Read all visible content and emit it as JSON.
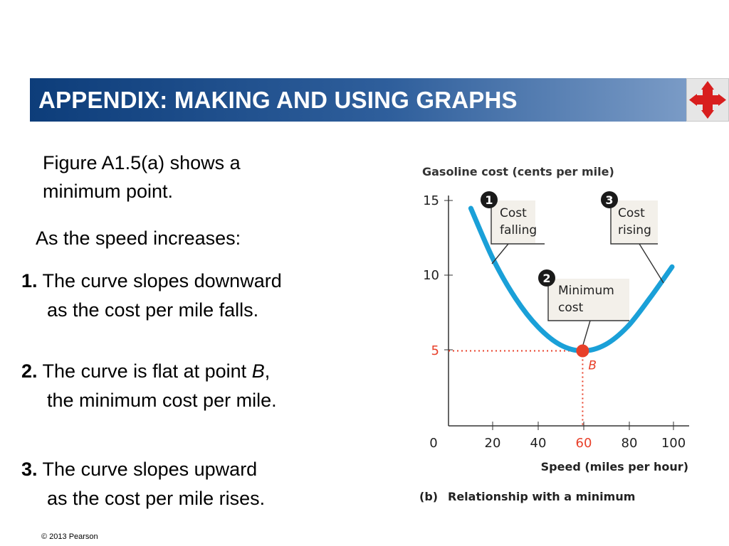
{
  "header": {
    "title": "APPENDIX: MAKING AND USING GRAPHS",
    "nav_icon": "four-way-arrows-icon",
    "accent": "#1f4f8f"
  },
  "body": {
    "intro_line1": "Figure A1.5(a) shows a",
    "intro_line2": "minimum point.",
    "lead": "As the speed increases:",
    "points": [
      {
        "num": "1.",
        "line1": "The curve slopes downward",
        "line2": "as the cost per mile falls."
      },
      {
        "num": "2.",
        "line1_a": "The curve is flat at point ",
        "line1_b": "B",
        "line1_c": ",",
        "line2": "the minimum cost per mile."
      },
      {
        "num": "3.",
        "line1": "The curve slopes upward",
        "line2": "as the cost per mile rises."
      }
    ]
  },
  "footer": {
    "copyright": "© 2013 Pearson"
  },
  "chart_data": {
    "type": "line",
    "title": "Gasoline cost (cents per mile)",
    "xlabel": "Speed (miles per hour)",
    "caption_prefix": "(b)",
    "caption": "Relationship with a minimum",
    "x": [
      10,
      20,
      30,
      40,
      50,
      60,
      70,
      80,
      90,
      100
    ],
    "y": [
      14.5,
      11.1,
      8.5,
      6.6,
      5.4,
      5.0,
      5.4,
      6.6,
      8.5,
      10.6
    ],
    "xlim": [
      0,
      105
    ],
    "ylim": [
      0,
      17
    ],
    "xticks": [
      "20",
      "40",
      "60",
      "80",
      "100"
    ],
    "x_origin_label": "0",
    "yticks": [
      "15",
      "10",
      "5"
    ],
    "highlight_point": {
      "x": 60,
      "y": 5,
      "label": "B",
      "x_label": "60",
      "y_label": "5"
    },
    "annotations": [
      {
        "num": "1",
        "lines": [
          "Cost",
          "falling"
        ]
      },
      {
        "num": "2",
        "lines": [
          "Minimum",
          "cost"
        ]
      },
      {
        "num": "3",
        "lines": [
          "Cost",
          "rising"
        ]
      }
    ],
    "colors": {
      "curve": "#1aa0d8",
      "highlight": "#e8402a",
      "note_bg": "#f3f0ea"
    }
  }
}
